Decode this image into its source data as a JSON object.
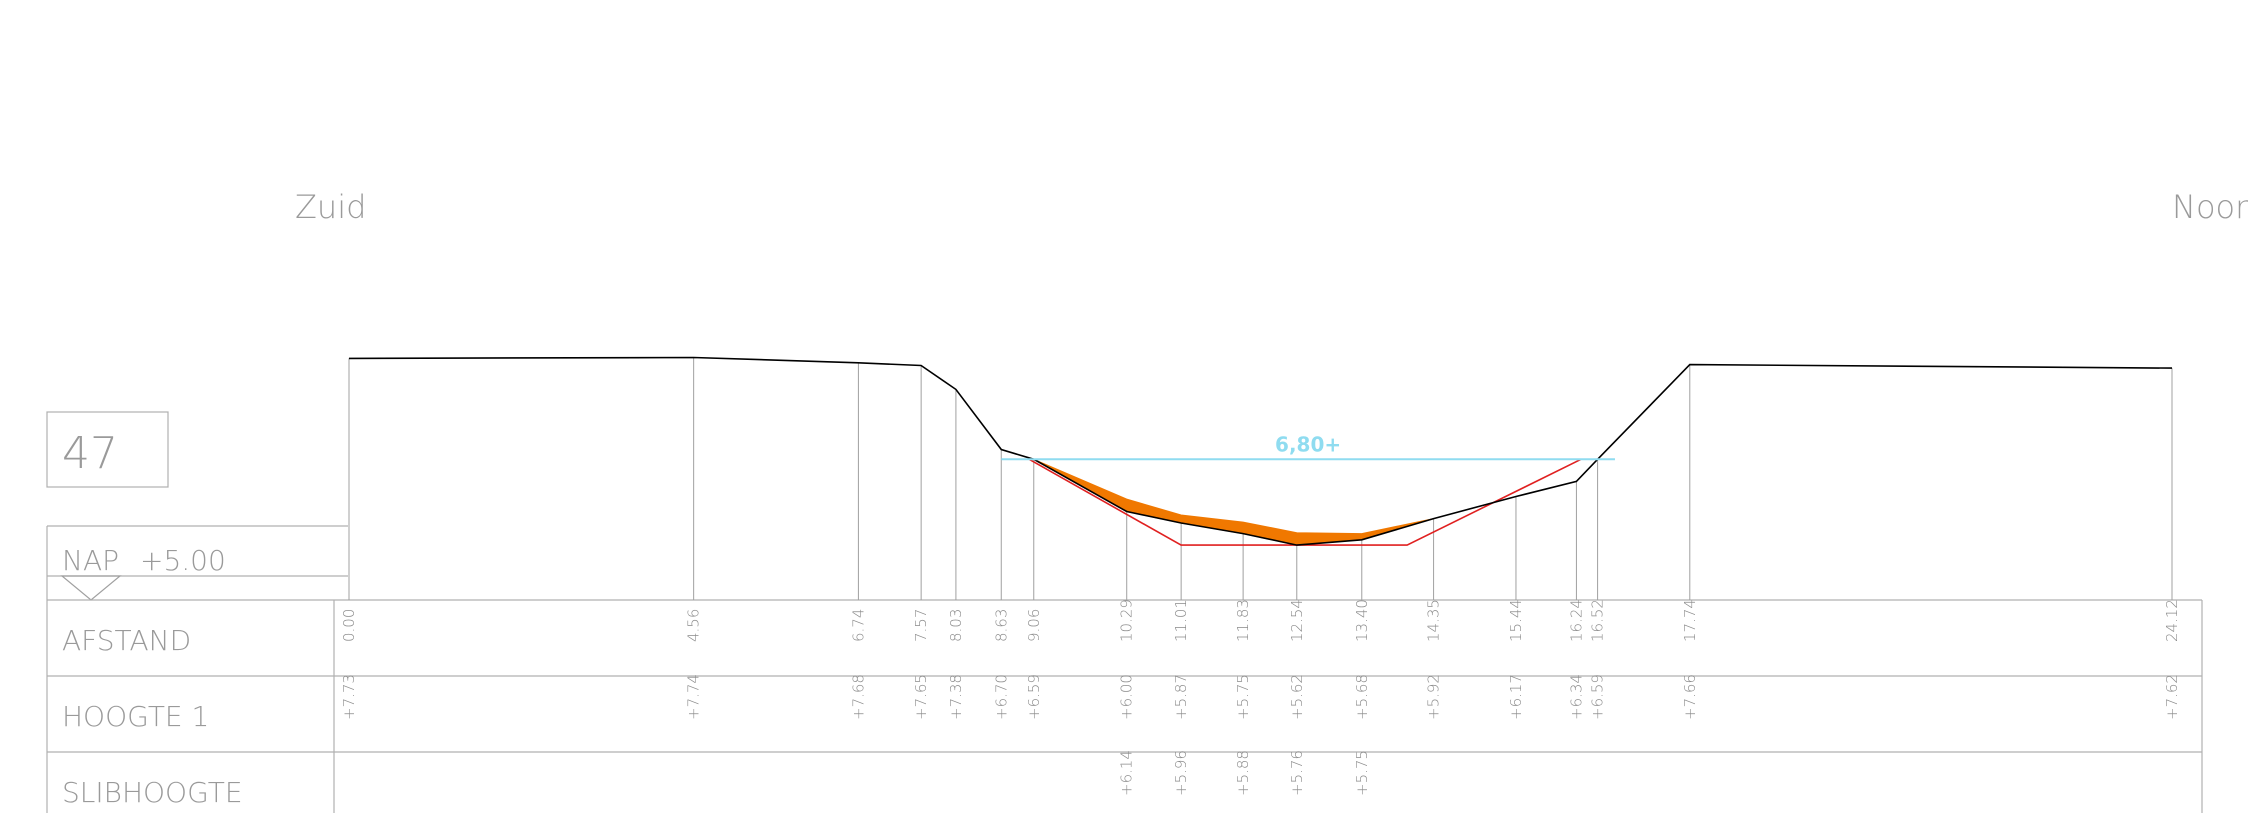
{
  "profile_number": "47",
  "directions": {
    "left": "Zuid",
    "right": "Noord"
  },
  "reference_level": {
    "label": "NAP",
    "value": "+5.00"
  },
  "width_annotation": "6,80+",
  "rows": {
    "distance": "AFSTAND",
    "height": "HOOGTE 1",
    "sludge": "SLIBHOOGTE"
  },
  "colors": {
    "bed_line": "#000000",
    "design_profile": "#e02020",
    "sludge_fill": "#f07800",
    "water_width": "#8fdcf0",
    "grid": "#a0a0a0"
  },
  "measurements": [
    {
      "distance": "0.00",
      "d": 0.0,
      "height": "+7.73",
      "h": 7.73
    },
    {
      "distance": "4.56",
      "d": 4.56,
      "height": "+7.74",
      "h": 7.74
    },
    {
      "distance": "6.74",
      "d": 6.74,
      "height": "+7.68",
      "h": 7.68
    },
    {
      "distance": "7.57",
      "d": 7.57,
      "height": "+7.65",
      "h": 7.65
    },
    {
      "distance": "8.03",
      "d": 8.03,
      "height": "+7.38",
      "h": 7.38
    },
    {
      "distance": "8.63",
      "d": 8.63,
      "height": "+6.70",
      "h": 6.7
    },
    {
      "distance": "9.06",
      "d": 9.06,
      "height": "+6.59",
      "h": 6.59
    },
    {
      "distance": "10.29",
      "d": 10.29,
      "height": "+6.00",
      "h": 6.0,
      "sludge": "+6.14",
      "s": 6.14
    },
    {
      "distance": "11.01",
      "d": 11.01,
      "height": "+5.87",
      "h": 5.87,
      "sludge": "+5.96",
      "s": 5.96
    },
    {
      "distance": "11.83",
      "d": 11.83,
      "height": "+5.75",
      "h": 5.75,
      "sludge": "+5.88",
      "s": 5.88
    },
    {
      "distance": "12.54",
      "d": 12.54,
      "height": "+5.62",
      "h": 5.62,
      "sludge": "+5.76",
      "s": 5.76
    },
    {
      "distance": "13.40",
      "d": 13.4,
      "height": "+5.68",
      "h": 5.68,
      "sludge": "+5.75",
      "s": 5.75
    },
    {
      "distance": "14.35",
      "d": 14.35,
      "height": "+5.92",
      "h": 5.92
    },
    {
      "distance": "15.44",
      "d": 15.44,
      "height": "+6.17",
      "h": 6.17
    },
    {
      "distance": "16.24",
      "d": 16.24,
      "height": "+6.34",
      "h": 6.34
    },
    {
      "distance": "16.52",
      "d": 16.52,
      "height": "+6.59",
      "h": 6.59
    },
    {
      "distance": "17.74",
      "d": 17.74,
      "height": "+7.66",
      "h": 7.66
    },
    {
      "distance": "24.12",
      "d": 24.12,
      "height": "+7.62",
      "h": 7.62
    }
  ],
  "sludge_start": {
    "d": 9.06,
    "h": 6.59
  },
  "sludge_end": {
    "d": 14.35,
    "h": 5.92
  },
  "design_profile": [
    {
      "d": 9.0,
      "h": 6.59
    },
    {
      "d": 11.01,
      "h": 5.62
    },
    {
      "d": 14.0,
      "h": 5.62
    },
    {
      "d": 16.3,
      "h": 6.59
    }
  ],
  "water_width": {
    "from_d": 8.63,
    "to_d": 16.75,
    "h": 6.59
  }
}
